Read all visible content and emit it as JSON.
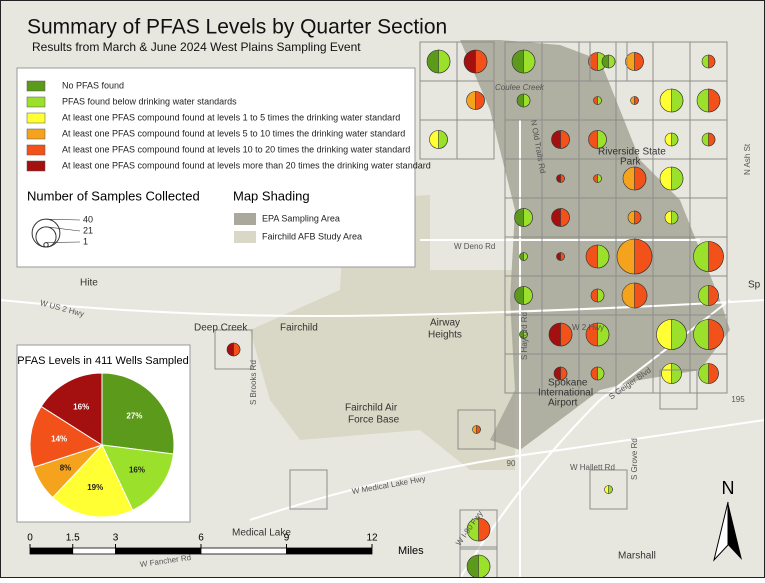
{
  "title": "Summary of PFAS Levels by Quarter Section",
  "subtitle": "Results from March & June 2024 West Plains Sampling Event",
  "legend": {
    "items": [
      {
        "label": "No PFAS found",
        "color": "#5c9a1b"
      },
      {
        "label": "PFAS found below drinking water standards",
        "color": "#9be02a"
      },
      {
        "label": "At least one PFAS compound found at levels 1 to 5 times the drinking water standard",
        "color": "#ffff33"
      },
      {
        "label": "At least one PFAS compound found at levels 5 to 10 times the drinking water standard",
        "color": "#f5a31c"
      },
      {
        "label": "At least one PFAS compound found at levels 10 to 20 times the drinking water standard",
        "color": "#f2521a"
      },
      {
        "label": "At least one PFAS compound found at levels more than 20 times the drinking water standard",
        "color": "#a40f0f"
      }
    ],
    "samples_title": "Number of Samples Collected",
    "samples": [
      40,
      21,
      1
    ],
    "shading_title": "Map Shading",
    "shading": [
      {
        "label": "EPA Sampling Area",
        "color": "#a9a89b"
      },
      {
        "label": "Fairchild AFB Study Area",
        "color": "#d9d7c5"
      }
    ]
  },
  "chart_data": {
    "type": "pie",
    "title": "PFAS Levels in 411 Wells Sampled",
    "values": [
      27,
      16,
      19,
      8,
      14,
      16
    ],
    "value_labels": [
      "27%",
      "16%",
      "19%",
      "8%",
      "14%",
      "16%"
    ],
    "colors": [
      "#5c9a1b",
      "#9be02a",
      "#ffff33",
      "#f5a31c",
      "#f2521a",
      "#a40f0f"
    ]
  },
  "scale_bar": {
    "ticks": [
      0,
      1.5,
      3,
      6,
      9,
      12
    ],
    "unit": "Miles"
  },
  "places": [
    "Hite",
    "Deep Creek",
    "Fairchild",
    "Airway",
    "Heights",
    "Fairchild Air",
    "Force Base",
    "Spokane",
    "International",
    "Airport",
    "Medical Lake",
    "Marshall",
    "Riverside State",
    "Park",
    "Sp"
  ],
  "roads": [
    "W US 2 Hwy",
    "W Deno Rd",
    "W 2 Hwy",
    "W Medical Lake Hwy",
    "Coulee Creek",
    "S Hayford Rd",
    "S Geiger Blvd",
    "N Old Trails Rd",
    "W Hallett Rd",
    "S Grove Rd",
    "N Ash St",
    "W I-90 Fwy",
    "S Brooks Rd",
    "W Fancher Rd",
    "195",
    "90"
  ],
  "north": "N"
}
